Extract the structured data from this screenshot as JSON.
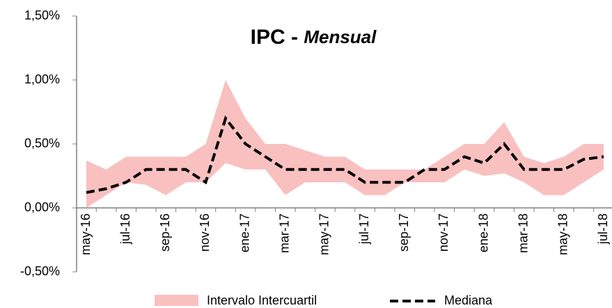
{
  "chart_data": {
    "type": "band-line",
    "title": {
      "main": "IPC -",
      "emphasis": "Mensual"
    },
    "categories": [
      "may-16",
      null,
      "jul-16",
      null,
      "sep-16",
      null,
      "nov-16",
      null,
      "ene-17",
      null,
      "mar-17",
      null,
      "may-17",
      null,
      "jul-17",
      null,
      "sep-17",
      null,
      "nov-17",
      null,
      "ene-18",
      null,
      "mar-18",
      null,
      "may-18",
      null,
      "jul-18"
    ],
    "series": [
      {
        "name": "Intervalo Intercuartil",
        "color": "#f9c0c0",
        "high": [
          0.37,
          0.3,
          0.4,
          0.4,
          0.4,
          0.4,
          0.5,
          1.0,
          0.7,
          0.5,
          0.5,
          0.45,
          0.4,
          0.4,
          0.3,
          0.3,
          0.3,
          0.3,
          0.4,
          0.5,
          0.5,
          0.67,
          0.4,
          0.35,
          0.4,
          0.5,
          0.5
        ],
        "low": [
          0.0,
          0.1,
          0.2,
          0.18,
          0.1,
          0.2,
          0.2,
          0.35,
          0.3,
          0.3,
          0.1,
          0.2,
          0.2,
          0.2,
          0.1,
          0.1,
          0.2,
          0.2,
          0.2,
          0.3,
          0.25,
          0.27,
          0.2,
          0.1,
          0.1,
          0.2,
          0.3
        ]
      },
      {
        "name": "Mediana",
        "color": "#000000",
        "values": [
          0.12,
          0.15,
          0.2,
          0.3,
          0.3,
          0.3,
          0.2,
          0.7,
          0.5,
          0.4,
          0.3,
          0.3,
          0.3,
          0.3,
          0.2,
          0.2,
          0.2,
          0.3,
          0.3,
          0.4,
          0.35,
          0.5,
          0.3,
          0.3,
          0.3,
          0.38,
          0.4
        ]
      }
    ],
    "ylim": [
      -0.5,
      1.5
    ],
    "yticks": [
      {
        "value": -0.5,
        "label": "-0,50%"
      },
      {
        "value": 0,
        "label": "0,00%"
      },
      {
        "value": 0.5,
        "label": "0,50%"
      },
      {
        "value": 1.0,
        "label": "1,00%"
      },
      {
        "value": 1.5,
        "label": "1,50%"
      }
    ]
  }
}
